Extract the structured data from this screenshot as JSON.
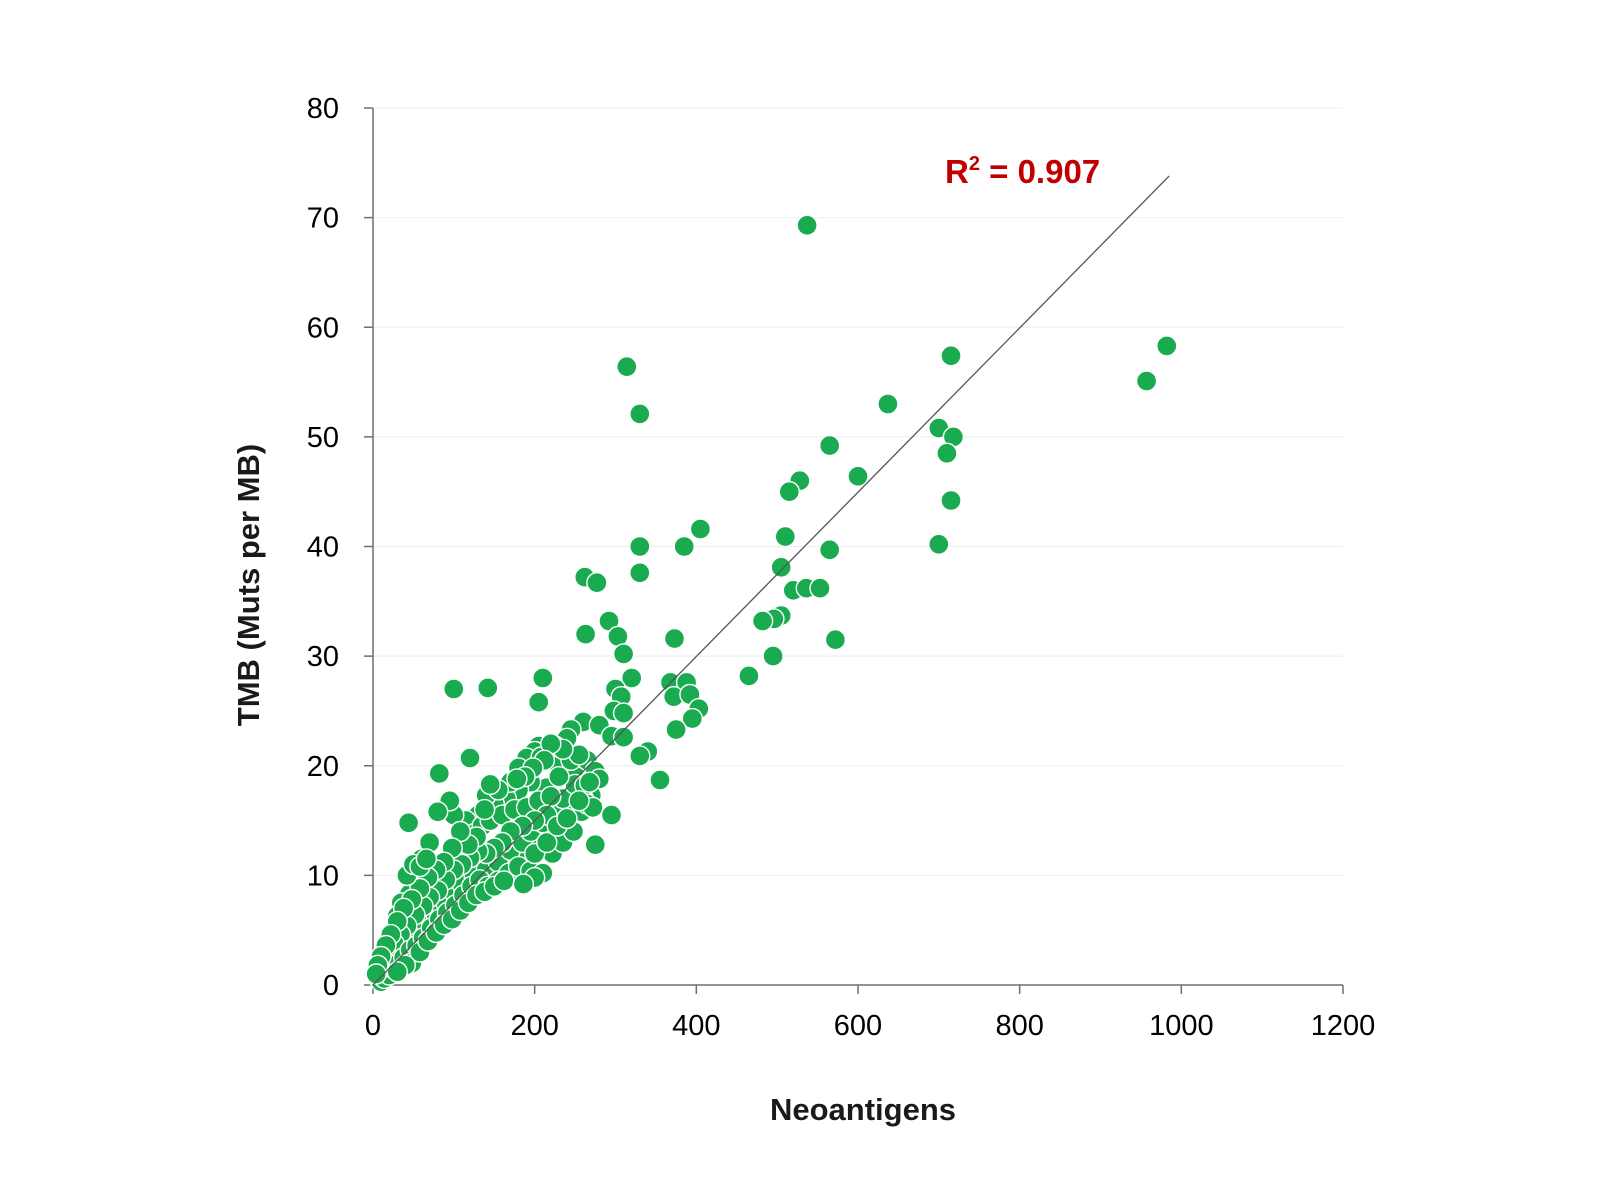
{
  "chart_data": {
    "type": "scatter",
    "xlabel": "Neoantigens",
    "ylabel": "TMB (Muts per MB)",
    "xlim": [
      0,
      1200
    ],
    "ylim": [
      0,
      80
    ],
    "x_ticks": [
      "0",
      "200",
      "400",
      "600",
      "800",
      "1000",
      "1200"
    ],
    "y_ticks": [
      "0",
      "10",
      "20",
      "30",
      "40",
      "50",
      "60",
      "70",
      "80"
    ],
    "grid": "horizontal",
    "annotation": {
      "label": "R",
      "sup": "2",
      "rest": " = 0.907"
    },
    "trendline": {
      "x": [
        0,
        985
      ],
      "y": [
        0,
        73.8
      ]
    },
    "colors": {
      "point": "#1aab50",
      "point_stroke": "#ffffff",
      "trendline": "#555555",
      "annotation": "#c00000",
      "grid": "#eeeeee",
      "axis": "#6e6e6e"
    },
    "series": [
      {
        "points": [
          [
            537,
            69.3
          ],
          [
            982,
            58.3
          ],
          [
            957,
            55.1
          ],
          [
            715,
            57.4
          ],
          [
            314,
            56.4
          ],
          [
            330,
            52.1
          ],
          [
            637,
            53.0
          ],
          [
            700,
            50.8
          ],
          [
            718,
            50.0
          ],
          [
            565,
            49.2
          ],
          [
            710,
            48.5
          ],
          [
            600,
            46.4
          ],
          [
            528,
            46.0
          ],
          [
            515,
            45.0
          ],
          [
            715,
            44.2
          ],
          [
            405,
            41.6
          ],
          [
            510,
            40.9
          ],
          [
            700,
            40.2
          ],
          [
            330,
            40.0
          ],
          [
            385,
            40.0
          ],
          [
            565,
            39.7
          ],
          [
            505,
            38.1
          ],
          [
            330,
            37.6
          ],
          [
            262,
            37.2
          ],
          [
            277,
            36.7
          ],
          [
            520,
            36.0
          ],
          [
            536,
            36.2
          ],
          [
            553,
            36.2
          ],
          [
            505,
            33.7
          ],
          [
            496,
            33.4
          ],
          [
            482,
            33.2
          ],
          [
            292,
            33.2
          ],
          [
            263,
            32.0
          ],
          [
            303,
            31.8
          ],
          [
            373,
            31.6
          ],
          [
            572,
            31.5
          ],
          [
            310,
            30.2
          ],
          [
            495,
            30.0
          ],
          [
            100,
            27.0
          ],
          [
            142,
            27.1
          ],
          [
            210,
            28.0
          ],
          [
            320,
            28.0
          ],
          [
            465,
            28.2
          ],
          [
            368,
            27.6
          ],
          [
            388,
            27.6
          ],
          [
            372,
            26.3
          ],
          [
            392,
            26.5
          ],
          [
            403,
            25.2
          ],
          [
            395,
            24.3
          ],
          [
            375,
            23.3
          ],
          [
            205,
            25.8
          ],
          [
            300,
            27.0
          ],
          [
            307,
            26.3
          ],
          [
            298,
            25.0
          ],
          [
            310,
            24.8
          ],
          [
            260,
            24.0
          ],
          [
            280,
            23.7
          ],
          [
            295,
            22.7
          ],
          [
            310,
            22.6
          ],
          [
            340,
            21.3
          ],
          [
            330,
            20.9
          ],
          [
            355,
            18.7
          ],
          [
            295,
            15.5
          ],
          [
            275,
            12.8
          ],
          [
            120,
            20.7
          ],
          [
            82,
            19.3
          ],
          [
            44,
            14.8
          ],
          [
            245,
            23.3
          ],
          [
            240,
            22.5
          ],
          [
            225,
            21.8
          ],
          [
            205,
            21.8
          ],
          [
            200,
            21.3
          ],
          [
            190,
            20.7
          ],
          [
            208,
            20.8
          ],
          [
            230,
            20.0
          ],
          [
            250,
            19.8
          ],
          [
            265,
            20.5
          ],
          [
            275,
            19.5
          ],
          [
            280,
            18.8
          ],
          [
            270,
            17.3
          ],
          [
            260,
            17.0
          ],
          [
            245,
            16.2
          ],
          [
            230,
            15.5
          ],
          [
            240,
            14.3
          ],
          [
            220,
            13.6
          ],
          [
            205,
            12.5
          ],
          [
            180,
            12.0
          ],
          [
            160,
            11.5
          ],
          [
            150,
            11.0
          ],
          [
            130,
            10.5
          ],
          [
            120,
            9.5
          ],
          [
            105,
            8.8
          ],
          [
            95,
            8.0
          ],
          [
            85,
            7.0
          ],
          [
            70,
            6.5
          ],
          [
            60,
            5.5
          ],
          [
            50,
            5.0
          ],
          [
            40,
            4.2
          ],
          [
            30,
            3.5
          ],
          [
            25,
            2.8
          ],
          [
            20,
            2.0
          ],
          [
            15,
            1.5
          ],
          [
            10,
            1.0
          ],
          [
            8,
            0.5
          ],
          [
            12,
            0.8
          ],
          [
            18,
            1.2
          ],
          [
            22,
            1.6
          ],
          [
            28,
            2.2
          ],
          [
            35,
            3.0
          ],
          [
            45,
            4.0
          ],
          [
            55,
            4.8
          ],
          [
            65,
            5.6
          ],
          [
            75,
            6.8
          ],
          [
            90,
            7.5
          ],
          [
            100,
            8.5
          ],
          [
            110,
            9.2
          ],
          [
            125,
            10.0
          ],
          [
            140,
            10.5
          ],
          [
            155,
            11.2
          ],
          [
            170,
            12.3
          ],
          [
            185,
            13.0
          ],
          [
            195,
            14.0
          ],
          [
            210,
            14.8
          ],
          [
            225,
            16.0
          ],
          [
            235,
            17.0
          ],
          [
            215,
            18.0
          ],
          [
            195,
            18.5
          ],
          [
            180,
            17.8
          ],
          [
            165,
            17.0
          ],
          [
            150,
            16.5
          ],
          [
            140,
            17.3
          ],
          [
            130,
            15.5
          ],
          [
            115,
            15.0
          ],
          [
            100,
            15.5
          ],
          [
            95,
            16.8
          ],
          [
            80,
            15.8
          ],
          [
            70,
            13.0
          ],
          [
            60,
            11.5
          ],
          [
            65,
            10.2
          ],
          [
            55,
            9.5
          ],
          [
            45,
            8.3
          ],
          [
            35,
            7.5
          ],
          [
            30,
            6.3
          ],
          [
            40,
            6.0
          ],
          [
            50,
            7.0
          ],
          [
            60,
            8.0
          ],
          [
            75,
            9.0
          ],
          [
            85,
            10.0
          ],
          [
            90,
            11.2
          ],
          [
            105,
            12.0
          ],
          [
            115,
            13.0
          ],
          [
            125,
            13.8
          ],
          [
            135,
            14.5
          ],
          [
            145,
            15.0
          ],
          [
            160,
            15.5
          ],
          [
            175,
            16.0
          ],
          [
            190,
            16.2
          ],
          [
            205,
            16.8
          ],
          [
            220,
            17.2
          ],
          [
            250,
            18.3
          ],
          [
            262,
            18.2
          ],
          [
            245,
            20.5
          ],
          [
            255,
            21.0
          ],
          [
            230,
            19.0
          ],
          [
            215,
            15.5
          ],
          [
            200,
            15.0
          ],
          [
            185,
            14.5
          ],
          [
            170,
            14.0
          ],
          [
            160,
            13.0
          ],
          [
            150,
            12.5
          ],
          [
            140,
            12.0
          ],
          [
            130,
            12.2
          ],
          [
            120,
            11.6
          ],
          [
            110,
            11.0
          ],
          [
            100,
            10.5
          ],
          [
            90,
            9.6
          ],
          [
            80,
            8.6
          ],
          [
            70,
            8.0
          ],
          [
            62,
            7.2
          ],
          [
            52,
            6.4
          ],
          [
            42,
            5.4
          ],
          [
            34,
            4.6
          ],
          [
            26,
            3.8
          ],
          [
            18,
            2.6
          ],
          [
            12,
            2.0
          ],
          [
            8,
            1.5
          ],
          [
            6,
            0.8
          ],
          [
            10,
            0.3
          ],
          [
            14,
            0.6
          ],
          [
            20,
            0.9
          ],
          [
            25,
            1.5
          ],
          [
            32,
            2.0
          ],
          [
            38,
            2.5
          ],
          [
            46,
            3.2
          ],
          [
            54,
            3.6
          ],
          [
            62,
            4.3
          ],
          [
            72,
            5.2
          ],
          [
            82,
            6.0
          ],
          [
            92,
            6.6
          ],
          [
            102,
            7.3
          ],
          [
            112,
            8.2
          ],
          [
            122,
            9.0
          ],
          [
            132,
            9.6
          ],
          [
            142,
            9.0
          ],
          [
            155,
            9.5
          ],
          [
            168,
            10.2
          ],
          [
            180,
            10.8
          ],
          [
            195,
            10.4
          ],
          [
            210,
            10.2
          ],
          [
            222,
            12.0
          ],
          [
            235,
            13.0
          ],
          [
            248,
            14.0
          ],
          [
            258,
            15.8
          ],
          [
            265,
            16.5
          ],
          [
            272,
            16.2
          ],
          [
            180,
            19.8
          ],
          [
            170,
            18.5
          ],
          [
            155,
            17.8
          ],
          [
            145,
            18.3
          ],
          [
            138,
            16.0
          ],
          [
            128,
            13.5
          ],
          [
            118,
            12.8
          ],
          [
            108,
            14.0
          ],
          [
            98,
            12.5
          ],
          [
            88,
            11.2
          ],
          [
            78,
            10.5
          ],
          [
            68,
            9.8
          ],
          [
            58,
            8.8
          ],
          [
            48,
            7.8
          ],
          [
            38,
            7.0
          ],
          [
            30,
            5.8
          ],
          [
            22,
            4.6
          ],
          [
            16,
            3.6
          ],
          [
            10,
            2.6
          ],
          [
            6,
            1.8
          ],
          [
            4,
            1.0
          ],
          [
            48,
            2.0
          ],
          [
            58,
            3.0
          ],
          [
            40,
            1.8
          ],
          [
            30,
            1.2
          ],
          [
            68,
            4.0
          ],
          [
            78,
            4.8
          ],
          [
            88,
            5.5
          ],
          [
            98,
            6.0
          ],
          [
            108,
            6.8
          ],
          [
            118,
            7.5
          ],
          [
            128,
            8.2
          ],
          [
            138,
            8.5
          ],
          [
            150,
            9.0
          ],
          [
            162,
            9.5
          ],
          [
            200,
            9.8
          ],
          [
            186,
            9.2
          ],
          [
            42,
            10.0
          ],
          [
            50,
            11.0
          ],
          [
            58,
            10.8
          ],
          [
            66,
            11.5
          ],
          [
            200,
            12.0
          ],
          [
            215,
            13.0
          ],
          [
            228,
            14.5
          ],
          [
            240,
            15.2
          ],
          [
            255,
            16.8
          ],
          [
            268,
            18.5
          ],
          [
            235,
            21.5
          ],
          [
            220,
            22.0
          ],
          [
            212,
            20.5
          ],
          [
            198,
            19.8
          ],
          [
            188,
            19.0
          ],
          [
            178,
            18.8
          ]
        ]
      }
    ]
  }
}
